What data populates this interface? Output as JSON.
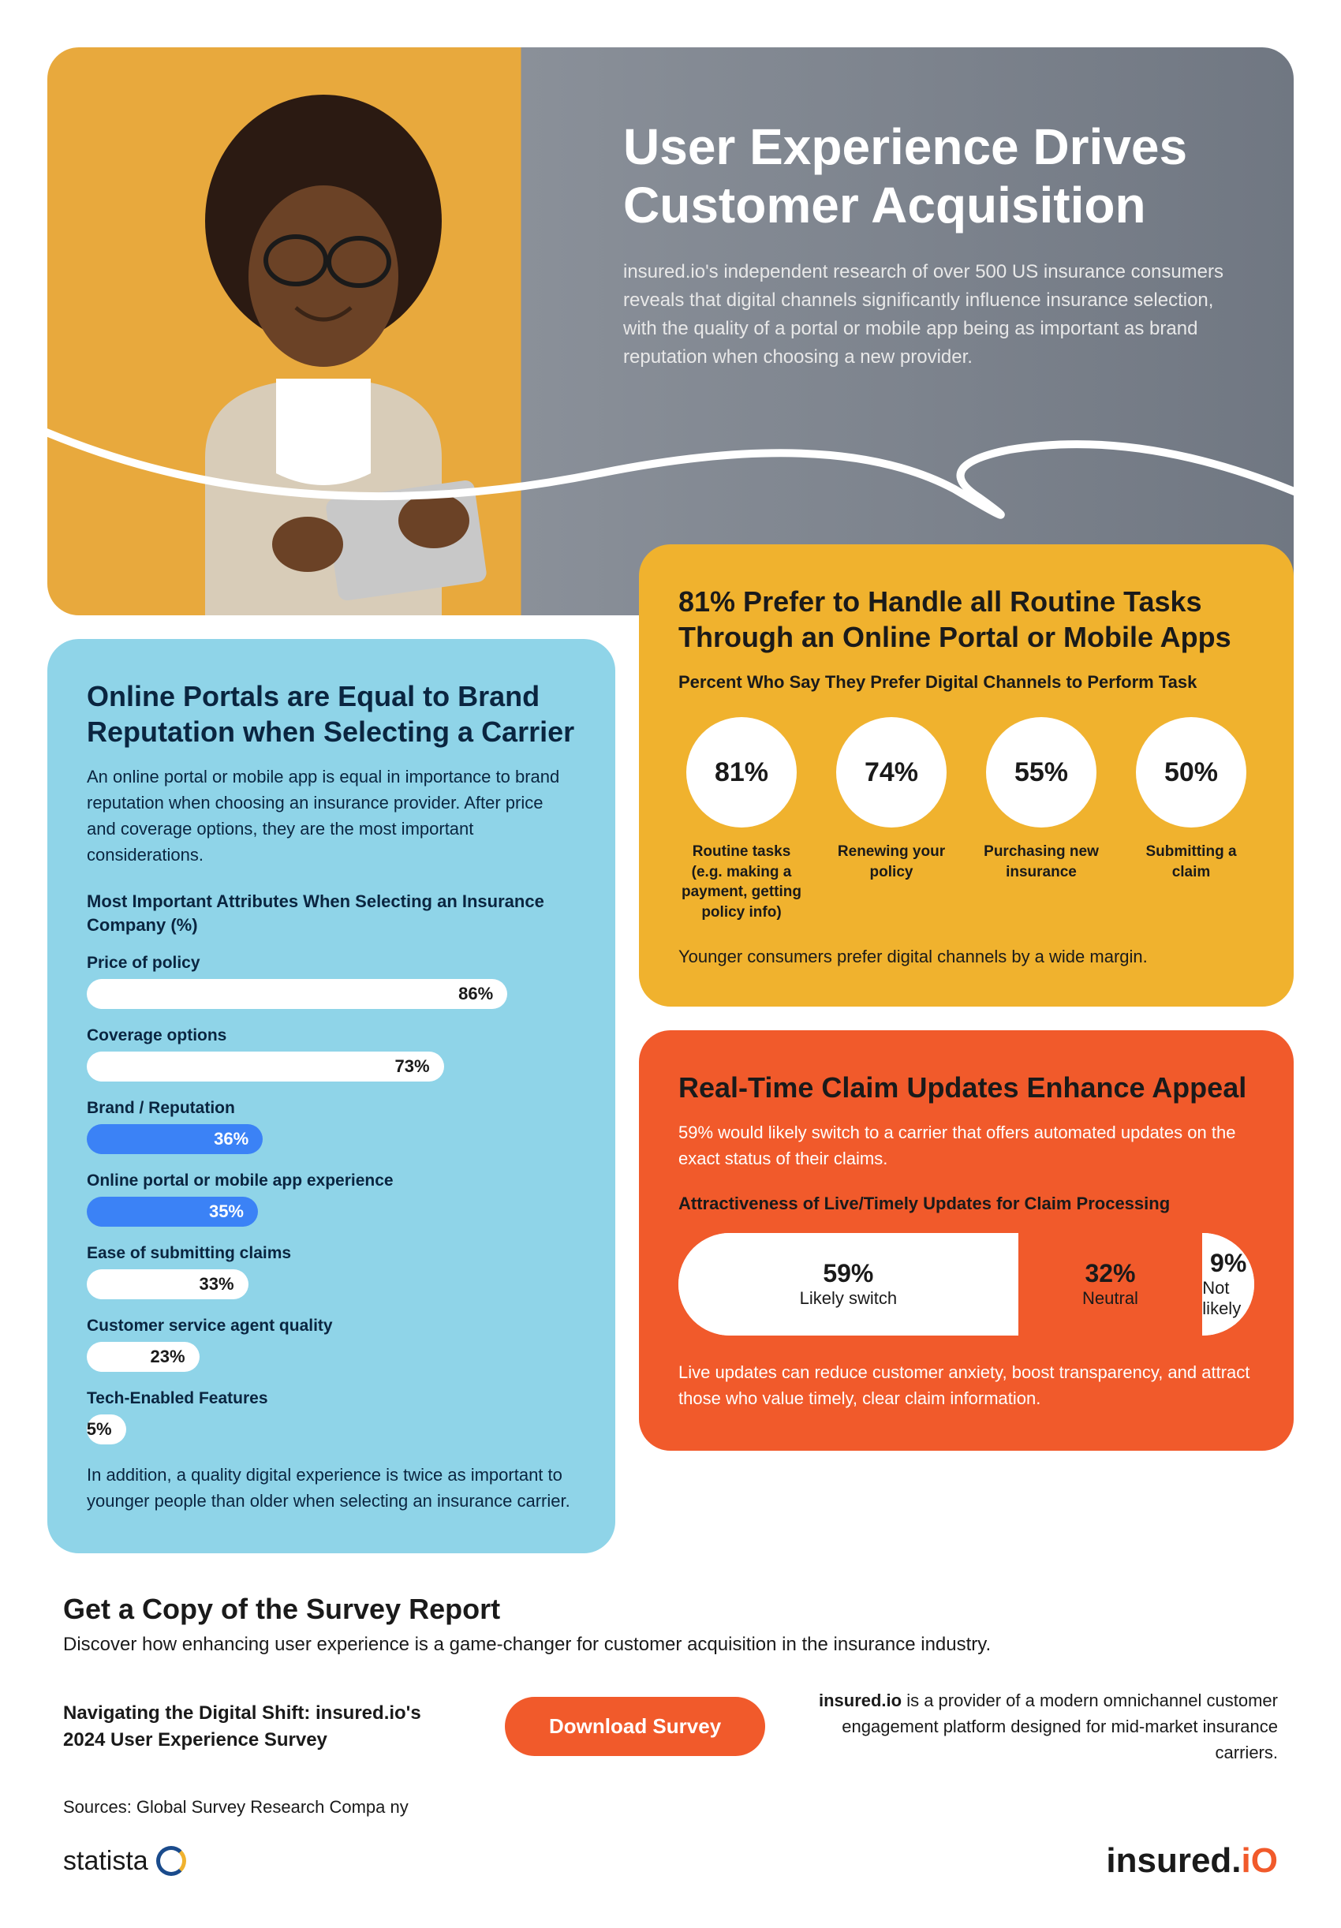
{
  "hero": {
    "title": "User Experience Drives Customer Acquisition",
    "body": "insured.io's independent research of over 500 US insurance consumers reveals that digital channels significantly influence insurance selection, with the quality of a portal or mobile app being as important as brand reputation when choosing a new provider."
  },
  "blue": {
    "title": "Online Portals are Equal to Brand Reputation when Selecting a Carrier",
    "intro": "An online portal or mobile app is equal in importance to brand reputation when choosing an insurance provider. After price and coverage options, they are the most important considerations.",
    "sub": "Most Important Attributes When Selecting an Insurance Company (%)",
    "bars": [
      {
        "label": "Price of policy",
        "pct": 86,
        "display": "86%",
        "hl": false
      },
      {
        "label": "Coverage options",
        "pct": 73,
        "display": "73%",
        "hl": false
      },
      {
        "label": "Brand / Reputation",
        "pct": 36,
        "display": "36%",
        "hl": true
      },
      {
        "label": "Online portal or mobile app experience",
        "pct": 35,
        "display": "35%",
        "hl": true
      },
      {
        "label": "Ease of submitting claims",
        "pct": 33,
        "display": "33%",
        "hl": false
      },
      {
        "label": "Customer service agent quality",
        "pct": 23,
        "display": "23%",
        "hl": false
      },
      {
        "label": "Tech-Enabled Features",
        "pct": 5,
        "display": "5%",
        "hl": false
      }
    ],
    "note": "In addition, a quality digital experience is twice as important to younger people than older when selecting an insurance carrier.",
    "bar_colors": {
      "default": "#ffffff",
      "highlight": "#3b82f6"
    },
    "card_bg": "#8fd4e8"
  },
  "yellow": {
    "title": "81% Prefer to Handle all Routine Tasks Through an Online Portal or Mobile Apps",
    "intro": "Percent Who Say They Prefer Digital Channels to Perform Task",
    "circles": [
      {
        "pct": "81%",
        "label": "Routine tasks (e.g. making a payment, getting policy info)"
      },
      {
        "pct": "74%",
        "label": "Renewing your policy"
      },
      {
        "pct": "55%",
        "label": "Purchasing new insurance"
      },
      {
        "pct": "50%",
        "label": "Submitting a claim"
      }
    ],
    "note": "Younger consumers prefer digital channels by a wide margin.",
    "card_bg": "#f0b22e",
    "circle_bg": "#ffffff"
  },
  "orange": {
    "title": "Real-Time Claim Updates Enhance Appeal",
    "intro": "59% would likely switch to a carrier that offers automated updates on the exact status of their claims.",
    "sub": "Attractiveness of Live/Timely Updates for Claim Processing",
    "segments": [
      {
        "pct": "59%",
        "label": "Likely switch",
        "width": 59,
        "bg": "#ffffff"
      },
      {
        "pct": "32%",
        "label": "Neutral",
        "width": 32,
        "bg": "#f15a2b"
      },
      {
        "pct": "9%",
        "label": "Not likely",
        "width": 9,
        "bg": "#ffffff"
      }
    ],
    "note": "Live updates can reduce customer anxiety, boost transparency, and attract those who value timely, clear claim information.",
    "card_bg": "#f15a2b"
  },
  "footer": {
    "title": "Get a Copy of the Survey Report",
    "intro": "Discover how enhancing user experience is a game-changer for customer acquisition in the insurance industry.",
    "report_name": "Navigating the Digital Shift: insured.io's 2024 User Experience Survey",
    "button": "Download Survey",
    "about_bold": "insured.io",
    "about": " is a provider of a modern omnichannel customer engagement platform designed for mid-market insurance carriers.",
    "sources": "Sources: Global Survey Research Compa ny",
    "logo_statista": "statista",
    "logo_insured_a": "insured.",
    "logo_insured_b": "iO"
  },
  "colors": {
    "hero_left": "#e8a93d",
    "hero_right": "#808790",
    "orange_btn": "#f15a2b"
  }
}
